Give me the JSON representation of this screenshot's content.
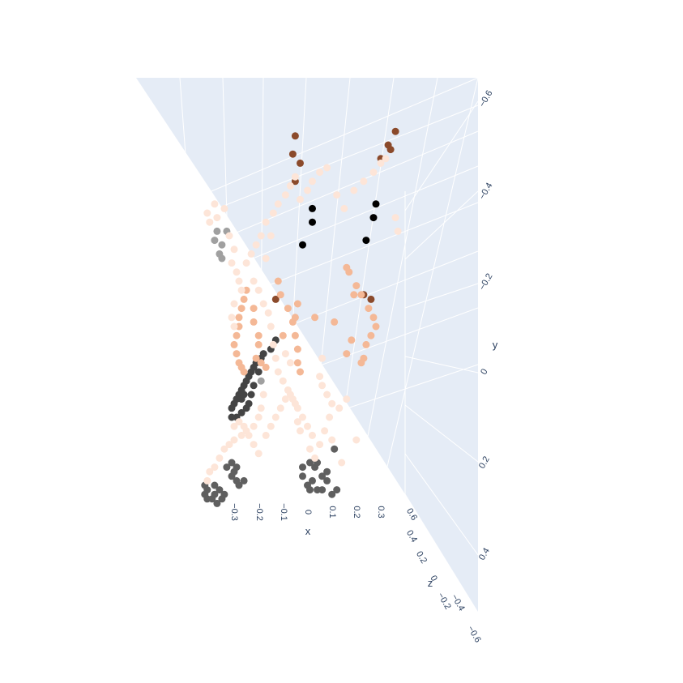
{
  "chart_data": {
    "type": "scatter3d",
    "title": "",
    "axes": {
      "x": {
        "title": "x",
        "ticks": [
          "−0.3",
          "−0.2",
          "−0.1",
          "0",
          "0.1",
          "0.2",
          "0.3"
        ],
        "range": [
          -0.35,
          0.4
        ]
      },
      "y": {
        "title": "y",
        "ticks": [
          "−0.6",
          "−0.4",
          "−0.2",
          "0",
          "0.2",
          "0.4"
        ],
        "range": [
          -0.6,
          0.4
        ]
      },
      "z": {
        "title": "z",
        "ticks": [
          "0.6",
          "0.4",
          "0.2",
          "0",
          "−0.2",
          "−0.4",
          "−0.6"
        ],
        "range": [
          0.6,
          -0.6
        ]
      }
    },
    "background_color": "#e5ecf6",
    "grid_color": "#ffffff",
    "colorscale": [
      "#000000",
      "#5a5a5a",
      "#a0a0a0",
      "#8b4a2b",
      "#f4b896",
      "#fde5d8"
    ],
    "series": [
      {
        "name": "dark-brown",
        "color": "#8b4a2b",
        "points": [
          [
            -0.05,
            -0.52
          ],
          [
            -0.06,
            -0.48
          ],
          [
            -0.03,
            -0.46
          ],
          [
            -0.05,
            -0.42
          ],
          [
            0.36,
            -0.53
          ],
          [
            0.33,
            -0.5
          ],
          [
            0.34,
            -0.49
          ],
          [
            0.3,
            -0.47
          ],
          [
            0.23,
            -0.17
          ],
          [
            0.26,
            -0.16
          ],
          [
            -0.13,
            -0.16
          ]
        ]
      },
      {
        "name": "black",
        "color": "#000000",
        "points": [
          [
            0.02,
            -0.36
          ],
          [
            0.02,
            -0.33
          ],
          [
            -0.02,
            -0.28
          ],
          [
            0.28,
            -0.37
          ],
          [
            0.27,
            -0.34
          ],
          [
            0.24,
            -0.29
          ]
        ]
      },
      {
        "name": "gray",
        "color": "#a0a0a0",
        "points": [
          [
            -0.37,
            -0.31
          ],
          [
            -0.33,
            -0.31
          ],
          [
            -0.38,
            -0.29
          ],
          [
            -0.35,
            -0.28
          ],
          [
            -0.36,
            -0.26
          ],
          [
            -0.35,
            -0.25
          ],
          [
            -0.19,
            0.02
          ]
        ]
      },
      {
        "name": "charcoal",
        "color": "#444444",
        "points": [
          [
            -0.13,
            -0.07
          ],
          [
            -0.15,
            -0.05
          ],
          [
            -0.18,
            -0.04
          ],
          [
            -0.19,
            -0.03
          ],
          [
            -0.21,
            -0.02
          ],
          [
            -0.22,
            -0.01
          ],
          [
            -0.23,
            0.0
          ],
          [
            -0.24,
            0.01
          ],
          [
            -0.25,
            0.02
          ],
          [
            -0.26,
            0.03
          ],
          [
            -0.27,
            0.04
          ],
          [
            -0.28,
            0.05
          ],
          [
            -0.29,
            0.06
          ],
          [
            -0.3,
            0.07
          ],
          [
            -0.31,
            0.08
          ],
          [
            -0.22,
            0.03
          ],
          [
            -0.23,
            0.05
          ],
          [
            -0.24,
            0.07
          ],
          [
            -0.25,
            0.08
          ],
          [
            -0.27,
            0.09
          ],
          [
            -0.29,
            0.1
          ],
          [
            -0.31,
            0.1
          ],
          [
            -0.27,
            0.06
          ],
          [
            -0.26,
            0.05
          ],
          [
            -0.2,
            0.0
          ]
        ]
      },
      {
        "name": "dark-gray",
        "color": "#5f5f5f",
        "points": [
          [
            -0.42,
            0.25
          ],
          [
            -0.41,
            0.26
          ],
          [
            -0.42,
            0.27
          ],
          [
            -0.41,
            0.28
          ],
          [
            -0.39,
            0.28
          ],
          [
            -0.38,
            0.27
          ],
          [
            -0.37,
            0.29
          ],
          [
            -0.35,
            0.28
          ],
          [
            -0.36,
            0.26
          ],
          [
            -0.34,
            0.27
          ],
          [
            -0.38,
            0.25
          ],
          [
            -0.33,
            0.21
          ],
          [
            -0.31,
            0.2
          ],
          [
            -0.3,
            0.22
          ],
          [
            -0.29,
            0.24
          ],
          [
            -0.28,
            0.25
          ],
          [
            -0.26,
            0.24
          ],
          [
            -0.31,
            0.23
          ],
          [
            -0.29,
            0.21
          ],
          [
            0.01,
            0.2
          ],
          [
            0.03,
            0.21
          ],
          [
            0.02,
            0.24
          ],
          [
            0.0,
            0.25
          ],
          [
            -0.02,
            0.23
          ],
          [
            -0.02,
            0.21
          ],
          [
            0.04,
            0.26
          ],
          [
            0.06,
            0.26
          ],
          [
            0.08,
            0.24
          ],
          [
            0.08,
            0.22
          ],
          [
            0.06,
            0.23
          ],
          [
            0.1,
            0.27
          ],
          [
            0.12,
            0.26
          ],
          [
            0.01,
            0.26
          ],
          [
            0.04,
            0.2
          ],
          [
            0.11,
            0.17
          ]
        ]
      },
      {
        "name": "peach",
        "color": "#f4b896",
        "points": [
          [
            -0.25,
            -0.18
          ],
          [
            -0.26,
            -0.16
          ],
          [
            -0.27,
            -0.14
          ],
          [
            -0.28,
            -0.12
          ],
          [
            -0.28,
            -0.1
          ],
          [
            -0.29,
            -0.08
          ],
          [
            -0.3,
            -0.06
          ],
          [
            -0.29,
            -0.04
          ],
          [
            -0.28,
            -0.02
          ],
          [
            -0.27,
            -0.01
          ],
          [
            -0.26,
            0.0
          ],
          [
            -0.22,
            -0.14
          ],
          [
            -0.22,
            -0.11
          ],
          [
            -0.2,
            -0.08
          ],
          [
            -0.2,
            -0.06
          ],
          [
            -0.21,
            -0.03
          ],
          [
            -0.19,
            -0.02
          ],
          [
            -0.17,
            -0.01
          ],
          [
            -0.12,
            -0.2
          ],
          [
            -0.11,
            -0.17
          ],
          [
            -0.08,
            -0.14
          ],
          [
            -0.06,
            -0.11
          ],
          [
            -0.05,
            -0.08
          ],
          [
            -0.04,
            -0.05
          ],
          [
            -0.04,
            -0.02
          ],
          [
            -0.03,
            0.0
          ],
          [
            -0.04,
            -0.15
          ],
          [
            -0.05,
            -0.12
          ],
          [
            0.16,
            -0.23
          ],
          [
            0.17,
            -0.22
          ],
          [
            0.2,
            -0.19
          ],
          [
            0.22,
            -0.17
          ],
          [
            0.25,
            -0.14
          ],
          [
            0.27,
            -0.12
          ],
          [
            0.28,
            -0.1
          ],
          [
            0.26,
            -0.08
          ],
          [
            0.24,
            -0.06
          ],
          [
            0.23,
            -0.03
          ],
          [
            0.22,
            -0.02
          ],
          [
            0.19,
            -0.17
          ],
          [
            0.18,
            -0.07
          ],
          [
            0.16,
            -0.04
          ],
          [
            0.11,
            -0.11
          ],
          [
            0.03,
            -0.12
          ],
          [
            -0.1,
            -0.08
          ]
        ]
      },
      {
        "name": "cream",
        "color": "#fde5d8",
        "points": [
          [
            -0.41,
            -0.35
          ],
          [
            -0.38,
            -0.37
          ],
          [
            -0.4,
            -0.33
          ],
          [
            -0.37,
            -0.34
          ],
          [
            -0.34,
            -0.36
          ],
          [
            -0.32,
            -0.3
          ],
          [
            -0.3,
            -0.27
          ],
          [
            -0.31,
            -0.24
          ],
          [
            -0.29,
            -0.22
          ],
          [
            -0.28,
            -0.2
          ],
          [
            -0.27,
            -0.18
          ],
          [
            -0.25,
            -0.24
          ],
          [
            -0.23,
            -0.26
          ],
          [
            -0.21,
            -0.28
          ],
          [
            -0.19,
            -0.3
          ],
          [
            -0.17,
            -0.33
          ],
          [
            -0.14,
            -0.35
          ],
          [
            -0.12,
            -0.37
          ],
          [
            -0.09,
            -0.39
          ],
          [
            -0.07,
            -0.41
          ],
          [
            -0.05,
            -0.43
          ],
          [
            -0.03,
            -0.38
          ],
          [
            0.0,
            -0.4
          ],
          [
            0.02,
            -0.42
          ],
          [
            0.05,
            -0.44
          ],
          [
            0.08,
            -0.45
          ],
          [
            0.12,
            -0.39
          ],
          [
            0.15,
            -0.36
          ],
          [
            0.19,
            -0.4
          ],
          [
            0.23,
            -0.42
          ],
          [
            0.27,
            -0.44
          ],
          [
            0.3,
            -0.46
          ],
          [
            0.32,
            -0.47
          ],
          [
            0.36,
            -0.34
          ],
          [
            0.37,
            -0.31
          ],
          [
            -0.3,
            -0.15
          ],
          [
            -0.31,
            -0.12
          ],
          [
            -0.3,
            -0.1
          ],
          [
            -0.22,
            -0.2
          ],
          [
            -0.2,
            -0.18
          ],
          [
            -0.18,
            -0.15
          ],
          [
            -0.16,
            -0.13
          ],
          [
            -0.15,
            -0.1
          ],
          [
            -0.14,
            -0.06
          ],
          [
            -0.13,
            -0.03
          ],
          [
            -0.12,
            0.0
          ],
          [
            -0.1,
            0.02
          ],
          [
            -0.08,
            0.04
          ],
          [
            -0.06,
            0.06
          ],
          [
            -0.04,
            0.08
          ],
          [
            -0.02,
            0.1
          ],
          [
            0.0,
            0.12
          ],
          [
            0.02,
            0.14
          ],
          [
            0.05,
            0.16
          ],
          [
            0.07,
            0.13
          ],
          [
            0.09,
            0.1
          ],
          [
            0.1,
            0.07
          ],
          [
            0.08,
            0.05
          ],
          [
            0.06,
            0.03
          ],
          [
            0.05,
            0.01
          ],
          [
            -0.18,
            0.05
          ],
          [
            -0.19,
            0.08
          ],
          [
            -0.2,
            0.1
          ],
          [
            -0.22,
            0.12
          ],
          [
            -0.25,
            0.13
          ],
          [
            -0.27,
            0.14
          ],
          [
            -0.3,
            0.15
          ],
          [
            -0.32,
            0.16
          ],
          [
            -0.34,
            0.17
          ],
          [
            -0.36,
            0.19
          ],
          [
            -0.38,
            0.21
          ],
          [
            -0.4,
            0.22
          ],
          [
            -0.41,
            0.24
          ],
          [
            -0.3,
            0.12
          ],
          [
            -0.28,
            0.11
          ],
          [
            -0.26,
            0.12
          ],
          [
            -0.24,
            0.14
          ],
          [
            -0.22,
            0.16
          ],
          [
            -0.2,
            0.18
          ],
          [
            -0.17,
            0.14
          ],
          [
            -0.15,
            0.12
          ],
          [
            -0.13,
            0.1
          ],
          [
            -0.11,
            0.08
          ],
          [
            -0.09,
            0.06
          ],
          [
            -0.07,
            0.05
          ],
          [
            -0.05,
            0.07
          ],
          [
            -0.04,
            0.11
          ],
          [
            -0.03,
            0.13
          ],
          [
            0.01,
            0.17
          ],
          [
            0.03,
            0.19
          ],
          [
            0.1,
            0.15
          ],
          [
            0.14,
            0.2
          ],
          [
            0.16,
            0.06
          ],
          [
            0.2,
            0.15
          ],
          [
            -0.09,
            -0.04
          ],
          [
            -0.07,
            -0.02
          ],
          [
            0.06,
            -0.03
          ],
          [
            0.13,
            0.08
          ],
          [
            -0.15,
            -0.3
          ],
          [
            -0.17,
            -0.25
          ]
        ]
      }
    ]
  }
}
